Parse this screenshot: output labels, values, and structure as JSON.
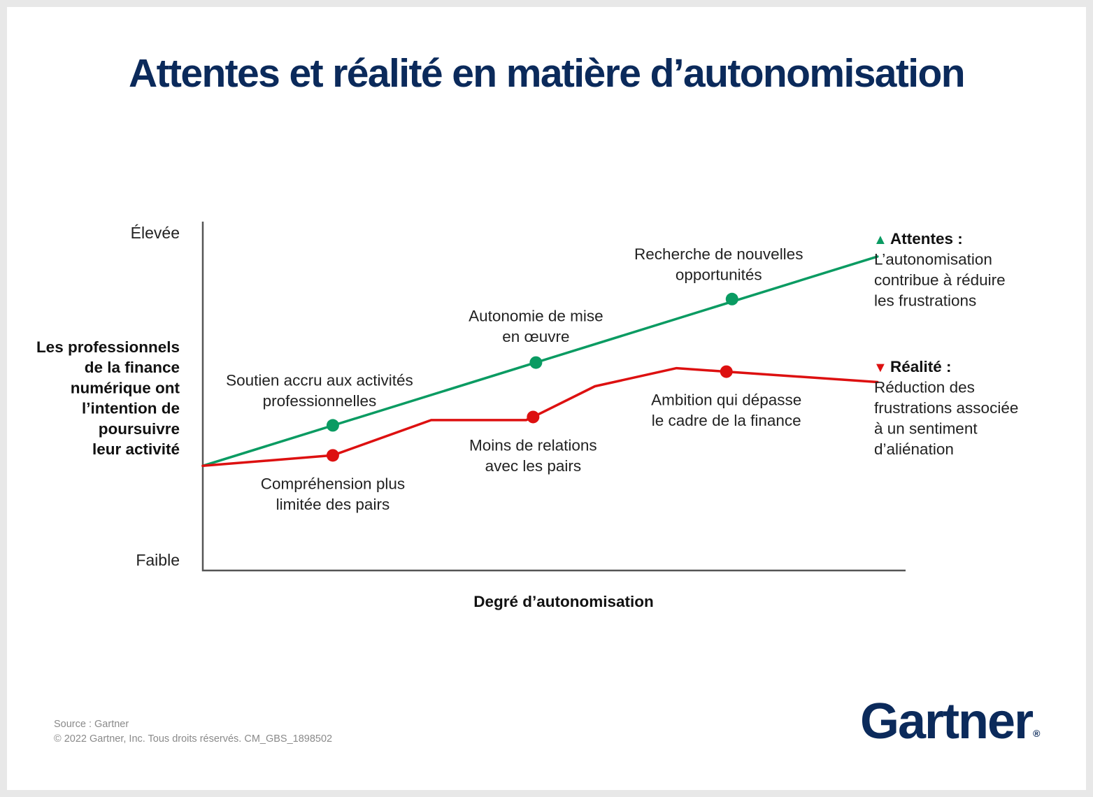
{
  "title": "Attentes et réalité en matière d’autonomisation",
  "chart_data": {
    "type": "line",
    "title": "Attentes et réalité en matière d’autonomisation",
    "xlabel": "Degré d’autonomisation",
    "ylabel": [
      "Les professionnels",
      "de la finance",
      "numérique ont",
      "l’intention de",
      "poursuivre",
      "leur activité"
    ],
    "y_ticks": {
      "high": "Élevée",
      "low": "Faible"
    },
    "xlim": [
      0,
      100
    ],
    "ylim": [
      0,
      100
    ],
    "colors": {
      "expectation": "#0a9b62",
      "reality": "#dd1010",
      "axis": "#555555"
    },
    "series": [
      {
        "key": "expectation",
        "points": [
          [
            0,
            30
          ],
          [
            96,
            90
          ]
        ],
        "markers": [
          {
            "x": 18.5,
            "y": 41.6,
            "label": [
              "Soutien accru aux activités",
              "professionnelles"
            ],
            "label_pos": "above-left"
          },
          {
            "x": 47.4,
            "y": 59.6,
            "label": [
              "Autonomie de mise",
              "en œuvre"
            ],
            "label_pos": "above"
          },
          {
            "x": 75.3,
            "y": 77.8,
            "label": [
              "Recherche de nouvelles",
              "opportunités"
            ],
            "label_pos": "above-left"
          }
        ],
        "legend": {
          "marker": "▲",
          "heading": "Attentes :",
          "text": [
            "L’autonomisation",
            "contribue à réduire",
            "les frustrations"
          ]
        }
      },
      {
        "key": "reality",
        "points": [
          [
            0,
            30
          ],
          [
            18.5,
            33
          ],
          [
            32.5,
            43.1
          ],
          [
            46,
            43.1
          ],
          [
            47,
            44
          ],
          [
            55.8,
            52.8
          ],
          [
            67.4,
            58
          ],
          [
            74.5,
            57
          ],
          [
            96,
            54
          ]
        ],
        "markers": [
          {
            "x": 18.5,
            "y": 33,
            "label": [
              "Compréhension plus",
              "limitée des pairs"
            ],
            "label_pos": "below"
          },
          {
            "x": 47,
            "y": 44,
            "label": [
              "Moins de relations",
              "avec les pairs"
            ],
            "label_pos": "below"
          },
          {
            "x": 74.5,
            "y": 57,
            "label": [
              "Ambition qui dépasse",
              "le cadre de la finance"
            ],
            "label_pos": "below"
          }
        ],
        "legend": {
          "marker": "▼",
          "heading": "Réalité :",
          "text": [
            "Réduction des",
            "frustrations associée",
            "à un sentiment",
            "d’aliénation"
          ]
        }
      }
    ]
  },
  "footer": {
    "source": "Source : Gartner",
    "copyright": "© 2022 Gartner, Inc. Tous droits réservés. CM_GBS_1898502"
  },
  "logo": {
    "text": "Gartner",
    "mark": "®"
  }
}
